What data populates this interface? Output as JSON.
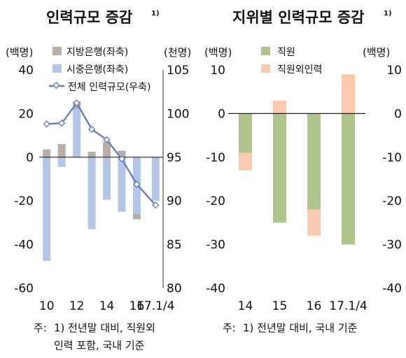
{
  "chart_data": [
    {
      "type": "bar",
      "title": "인력규모 증감",
      "title_sup": "1)",
      "left_unit": "(백명)",
      "right_unit": "(천명)",
      "x_tick_labels": [
        "10",
        "12",
        "14",
        "16",
        "17.1/4"
      ],
      "x_tick_positions": [
        2010,
        2012,
        2014,
        2016,
        2017.25
      ],
      "ylim_left": [
        -60,
        40
      ],
      "ylim_right": [
        80,
        105
      ],
      "y_ticks_left": [
        40,
        20,
        0,
        -20,
        -40,
        -60
      ],
      "y_ticks_right": [
        105,
        100,
        95,
        90,
        85,
        80
      ],
      "x": [
        2010,
        2011,
        2012,
        2013,
        2014,
        2015,
        2016,
        2017.25
      ],
      "series": [
        {
          "name": "지방은행(좌축)",
          "axis": "left",
          "type": "bar",
          "color": "#b8aca6",
          "values": [
            3.5,
            6,
            3.5,
            2.5,
            7,
            3,
            -2.5,
            0
          ]
        },
        {
          "name": "시중은행(좌축)",
          "axis": "left",
          "type": "bar",
          "color": "#b3c6e7",
          "values": [
            -47.5,
            -4.5,
            22,
            -33,
            -19.5,
            -25,
            -26,
            -20
          ]
        },
        {
          "name": "전체 인력규모(우축)",
          "axis": "right",
          "type": "line",
          "color": "#6b7fb8",
          "values": [
            98.8,
            98.9,
            101.2,
            98.2,
            97.0,
            94.8,
            91.9,
            89.5
          ]
        }
      ],
      "note_label": "주:",
      "note_lines": [
        "1) 전년말 대비, 직원외",
        "인력 포함, 국내 기준"
      ]
    },
    {
      "type": "bar",
      "stacked": true,
      "title": "지위별 인력규모 증감",
      "title_sup": "1)",
      "left_unit": "(백명)",
      "right_unit": "(백명)",
      "categories": [
        "14",
        "15",
        "16",
        "17.1/4"
      ],
      "ylim": [
        -40,
        10
      ],
      "y_ticks": [
        10,
        0,
        -10,
        -20,
        -30,
        -40
      ],
      "series": [
        {
          "name": "직원",
          "color": "#afc48a",
          "values": [
            -9,
            -25,
            -22,
            -30
          ]
        },
        {
          "name": "직원외인력",
          "color": "#fbc9ad",
          "values": [
            -4,
            3,
            -6,
            9
          ]
        }
      ],
      "note_label": "주:",
      "note_lines": [
        "1) 전년말 대비, 국내 기준"
      ]
    }
  ]
}
